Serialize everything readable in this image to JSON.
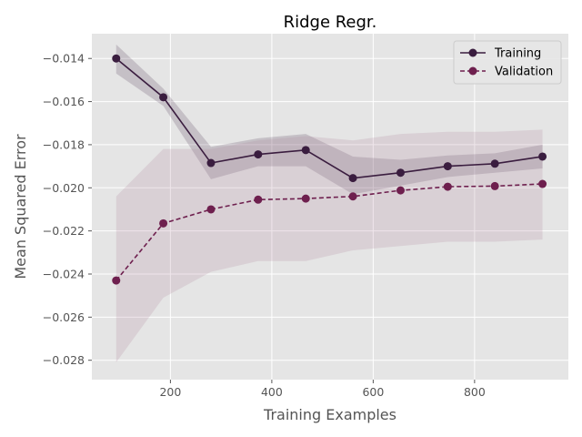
{
  "chart_data": {
    "type": "line",
    "title": "Ridge Regr.",
    "xlabel": "Training Examples",
    "ylabel": "Mean Squared Error",
    "xlim": [
      45,
      985
    ],
    "ylim": [
      -0.0289,
      -0.01285
    ],
    "xticks": [
      200,
      400,
      600,
      800
    ],
    "xtick_labels": [
      "200",
      "400",
      "600",
      "800"
    ],
    "yticks": [
      -0.028,
      -0.026,
      -0.024,
      -0.022,
      -0.02,
      -0.018,
      -0.016,
      -0.014
    ],
    "ytick_labels": [
      "−0.028",
      "−0.026",
      "−0.024",
      "−0.022",
      "−0.020",
      "−0.018",
      "−0.016",
      "−0.014"
    ],
    "grid": true,
    "legend_position": "upper-right",
    "x": [
      93,
      186,
      280,
      373,
      467,
      560,
      654,
      747,
      840,
      934
    ],
    "series": [
      {
        "name": "Training",
        "values": [
          -0.014,
          -0.0158,
          -0.01885,
          -0.01845,
          -0.01825,
          -0.01955,
          -0.0193,
          -0.019,
          -0.01888,
          -0.01855
        ],
        "upper": [
          -0.01335,
          -0.0154,
          -0.0181,
          -0.0177,
          -0.0175,
          -0.01855,
          -0.0187,
          -0.0185,
          -0.0184,
          -0.018
        ],
        "lower": [
          -0.0147,
          -0.0162,
          -0.0196,
          -0.019,
          -0.019,
          -0.0203,
          -0.0199,
          -0.0195,
          -0.0193,
          -0.0191
        ],
        "line_style": "solid",
        "color": "#3a1d3f",
        "band_color": "#3a1d3f",
        "band_opacity": 0.18
      },
      {
        "name": "Validation",
        "values": [
          -0.0243,
          -0.02165,
          -0.021,
          -0.02055,
          -0.0205,
          -0.0204,
          -0.02012,
          -0.01995,
          -0.01992,
          -0.01982
        ],
        "upper": [
          -0.0204,
          -0.0182,
          -0.0182,
          -0.0178,
          -0.0176,
          -0.0178,
          -0.0175,
          -0.0174,
          -0.0174,
          -0.0173
        ],
        "lower": [
          -0.0281,
          -0.0251,
          -0.0239,
          -0.0234,
          -0.0234,
          -0.0229,
          -0.0227,
          -0.0225,
          -0.0225,
          -0.0224
        ],
        "line_style": "dashed",
        "color": "#6e1f4e",
        "band_color": "#b08aa0",
        "band_opacity": 0.22
      }
    ],
    "colors": {
      "axes_background": "#e5e5e5",
      "grid": "#ffffff"
    }
  }
}
